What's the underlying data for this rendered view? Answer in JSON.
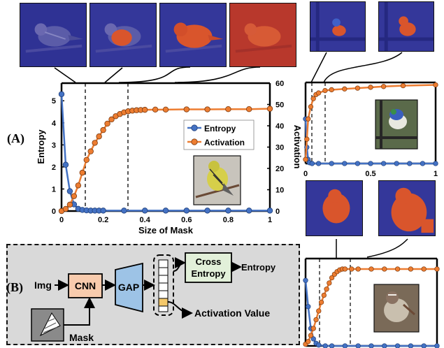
{
  "panel_labels": {
    "a": "(A)",
    "b": "(B)"
  },
  "main_plot": {
    "left_axis_label": "Entropy",
    "right_axis_label": "Activation",
    "x_axis_label": "Size of Mask",
    "x_ticks": [
      "0",
      "0.2",
      "0.4",
      "0.6",
      "0.8",
      "1"
    ],
    "left_ticks": [
      "0",
      "1",
      "2",
      "3",
      "4",
      "5"
    ],
    "right_ticks": [
      "0",
      "10",
      "20",
      "30",
      "40",
      "50",
      "60"
    ],
    "legend": [
      {
        "label": "Entropy",
        "color": "#4472C4"
      },
      {
        "label": "Activation",
        "color": "#ED7D31"
      }
    ]
  },
  "side_plot_top": {
    "x_ticks": [
      "0",
      "0.5",
      "1"
    ]
  },
  "diagram": {
    "input_label": "Img",
    "cnn_label": "CNN",
    "gap_label": "GAP",
    "cross_entropy_label": "Cross\nEntropy",
    "entropy_output_label": "Entropy",
    "activation_value_label": "Activation Value",
    "mask_label": "Mask"
  },
  "colors": {
    "entropy": "#4472C4",
    "activation": "#ED7D31",
    "cnn_box": "#F8CBAD",
    "gap_box": "#9DC3E6",
    "cross_entropy_box": "#E2F0D9",
    "panel_b_background": "#D9D9D9"
  },
  "chart_data": [
    {
      "type": "line",
      "xlabel": "Size of Mask",
      "ylabel": "Entropy",
      "y2label": "Activation",
      "xlim": [
        0,
        1
      ],
      "ylim": [
        0,
        5.8
      ],
      "y2lim": [
        0,
        60
      ],
      "series": [
        {
          "name": "Entropy",
          "axis": "left",
          "x": [
            0,
            0.02,
            0.04,
            0.06,
            0.08,
            0.1,
            0.12,
            0.14,
            0.16,
            0.18,
            0.2,
            0.3,
            0.4,
            0.5,
            0.6,
            0.7,
            0.8,
            0.9,
            1.0
          ],
          "y": [
            5.3,
            2.1,
            0.9,
            0.3,
            0.1,
            0.05,
            0.03,
            0.02,
            0.02,
            0.02,
            0.02,
            0.02,
            0.02,
            0.02,
            0.02,
            0.02,
            0.02,
            0.02,
            0.02
          ]
        },
        {
          "name": "Activation",
          "axis": "right",
          "x": [
            0,
            0.02,
            0.04,
            0.06,
            0.08,
            0.1,
            0.12,
            0.14,
            0.16,
            0.18,
            0.2,
            0.22,
            0.24,
            0.26,
            0.28,
            0.3,
            0.32,
            0.34,
            0.36,
            0.38,
            0.4,
            0.45,
            0.5,
            0.6,
            0.7,
            0.8,
            0.9,
            1.0
          ],
          "y": [
            0,
            1,
            3,
            7,
            12,
            18,
            24,
            28,
            32,
            35,
            38,
            41,
            43,
            44.5,
            45.5,
            46.3,
            46.8,
            47.1,
            47.3,
            47.4,
            47.5,
            47.6,
            47.6,
            47.7,
            47.7,
            47.8,
            47.8,
            48
          ]
        }
      ]
    },
    {
      "type": "line",
      "xlim": [
        0,
        1
      ],
      "series": [
        {
          "name": "Entropy",
          "x": [
            0,
            0.01,
            0.02,
            0.03,
            0.05,
            0.1,
            0.2,
            0.3,
            0.4,
            0.5,
            0.6,
            0.7,
            0.8,
            0.9,
            1.0
          ],
          "y": [
            0.55,
            0.2,
            0.05,
            0.01,
            0,
            0,
            0,
            0,
            0,
            0,
            0,
            0,
            0,
            0,
            0
          ]
        },
        {
          "name": "Activation",
          "x": [
            0,
            0.01,
            0.02,
            0.04,
            0.06,
            0.08,
            0.1,
            0.15,
            0.2,
            0.3,
            0.4,
            0.5,
            0.6,
            0.75,
            1.0
          ],
          "y": [
            0.05,
            0.3,
            0.55,
            0.7,
            0.8,
            0.85,
            0.87,
            0.9,
            0.91,
            0.92,
            0.93,
            0.94,
            0.95,
            0.96,
            0.97
          ]
        }
      ]
    },
    {
      "type": "line",
      "xlim": [
        0,
        1
      ],
      "series": [
        {
          "name": "Entropy",
          "x": [
            0,
            0.02,
            0.04,
            0.06,
            0.08,
            0.1,
            0.15,
            0.2,
            0.3,
            0.4,
            0.5,
            0.6,
            0.7,
            0.8,
            0.9,
            1.0
          ],
          "y": [
            0.75,
            0.45,
            0.2,
            0.08,
            0.03,
            0.01,
            0,
            0,
            0,
            0,
            0,
            0,
            0,
            0,
            0,
            0
          ]
        },
        {
          "name": "Activation",
          "x": [
            0,
            0.02,
            0.04,
            0.06,
            0.08,
            0.1,
            0.12,
            0.14,
            0.16,
            0.18,
            0.2,
            0.22,
            0.24,
            0.26,
            0.28,
            0.3,
            0.35,
            0.4,
            0.5,
            0.6,
            0.7,
            0.8,
            0.9,
            1.0
          ],
          "y": [
            0.02,
            0.05,
            0.12,
            0.2,
            0.3,
            0.4,
            0.5,
            0.58,
            0.65,
            0.72,
            0.78,
            0.82,
            0.85,
            0.87,
            0.88,
            0.88,
            0.88,
            0.88,
            0.88,
            0.88,
            0.88,
            0.88,
            0.88,
            0.88
          ]
        }
      ]
    }
  ]
}
